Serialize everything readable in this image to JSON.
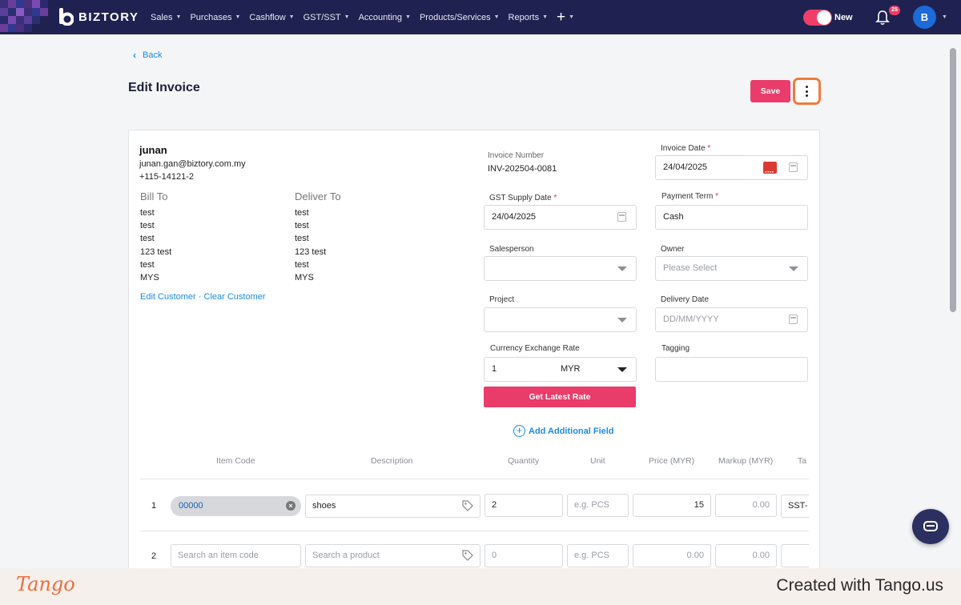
{
  "brand": {
    "name": "BIZTORY",
    "accent": "#ea3c6a",
    "nav_bg": "#1f2250",
    "link": "#1c8ce3"
  },
  "nav": {
    "items": [
      {
        "label": "Sales"
      },
      {
        "label": "Purchases"
      },
      {
        "label": "Cashflow"
      },
      {
        "label": "GST/SST"
      },
      {
        "label": "Accounting"
      },
      {
        "label": "Products/Services"
      },
      {
        "label": "Reports"
      }
    ],
    "plus": "+",
    "toggle_label": "New",
    "notification_count": "25",
    "avatar_initial": "B"
  },
  "header": {
    "back_label": "Back",
    "title": "Edit Invoice",
    "save_label": "Save"
  },
  "customer": {
    "name": "junan",
    "email": "junan.gan@biztory.com.my",
    "phone": "+115-14121-2",
    "bill_to_label": "Bill To",
    "deliver_to_label": "Deliver To",
    "bill_to": [
      "test",
      "test",
      "test",
      "123 test",
      "test",
      "MYS"
    ],
    "deliver_to": [
      "test",
      "test",
      "test",
      "123 test",
      "test",
      "MYS"
    ],
    "edit_link": "Edit Customer",
    "separator": "·",
    "clear_link": "Clear Customer"
  },
  "form": {
    "invoice_number_label": "Invoice Number",
    "invoice_number": "INV-202504-0081",
    "invoice_date_label": "Invoice Date",
    "invoice_date": "24/04/2025",
    "gst_supply_date_label": "GST Supply Date",
    "gst_supply_date": "24/04/2025",
    "payment_term_label": "Payment Term",
    "payment_term": "Cash",
    "salesperson_label": "Salesperson",
    "owner_label": "Owner",
    "owner_placeholder": "Please Select",
    "project_label": "Project",
    "delivery_date_label": "Delivery Date",
    "delivery_date_placeholder": "DD/MM/YYYY",
    "currency_label": "Currency Exchange Rate",
    "currency_rate": "1",
    "currency": "MYR",
    "tagging_label": "Tagging",
    "latest_rate_button": "Get Latest Rate",
    "add_field_label": "Add Additional Field",
    "required_mark": "*"
  },
  "table": {
    "headers": [
      "Item Code",
      "Description",
      "Quantity",
      "Unit",
      "Price (MYR)",
      "Markup (MYR)",
      "Ta"
    ],
    "rows": [
      {
        "num": "1",
        "code": "00000",
        "description": "shoes",
        "quantity": "2",
        "unit_placeholder": "e.g. PCS",
        "price": "15",
        "markup": "0.00",
        "tax": "SST-"
      },
      {
        "num": "2",
        "code_placeholder": "Search an item code",
        "description_placeholder": "Search a product",
        "quantity_placeholder": "0",
        "unit_placeholder": "e.g. PCS",
        "price": "0.00",
        "markup": "0.00",
        "tax": ""
      }
    ]
  },
  "footer": {
    "logo": "Tango",
    "credit": "Created with Tango.us"
  }
}
